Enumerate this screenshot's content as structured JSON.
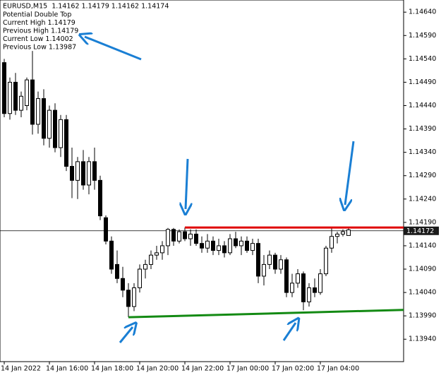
{
  "chart_data": {
    "type": "candlestick",
    "header": "EURUSD,M15  1.14162 1.14179 1.14162 1.14174",
    "annotations": [
      "Potential Double Top",
      "Current High 1.14179",
      "Previous High 1.14179",
      "Current Low 1.14002",
      "Previous Low 1.13987"
    ],
    "categories": [
      "14 Jan 2022",
      null,
      null,
      null,
      null,
      null,
      null,
      null,
      "14 Jan 16:00",
      null,
      null,
      null,
      null,
      null,
      null,
      null,
      "14 Jan 18:00",
      null,
      null,
      null,
      null,
      null,
      null,
      null,
      "14 Jan 20:00",
      null,
      null,
      null,
      null,
      null,
      null,
      null,
      "14 Jan 22:00",
      null,
      null,
      null,
      null,
      null,
      null,
      null,
      "17 Jan 00:00",
      null,
      null,
      null,
      null,
      null,
      null,
      null,
      "17 Jan 02:00",
      null,
      null,
      null,
      null,
      null,
      null,
      null,
      "17 Jan 04:00",
      null,
      null,
      null,
      null,
      null
    ],
    "open": [
      1.14532,
      1.14423,
      1.1449,
      1.1443,
      1.1444,
      1.14495,
      1.144,
      1.14455,
      1.1437,
      1.1443,
      1.1435,
      1.1441,
      1.1431,
      1.1428,
      1.1432,
      1.1427,
      1.1432,
      1.1428,
      1.142,
      1.1415,
      1.141,
      1.1407,
      1.14045,
      1.1401,
      1.1405,
      1.1409,
      1.141,
      1.1412,
      1.14125,
      1.1414,
      1.14175,
      1.1415,
      1.1417,
      1.14155,
      1.14165,
      1.14145,
      1.14135,
      1.1415,
      1.1413,
      1.1414,
      1.14125,
      1.14155,
      1.1414,
      1.1415,
      1.1413,
      1.14145,
      1.14075,
      1.141,
      1.1412,
      1.1409,
      1.1411,
      1.1404,
      1.1406,
      1.1408,
      1.1402,
      1.1405,
      1.1404,
      1.1408,
      1.14135,
      1.1416,
      1.14165,
      1.14162
    ],
    "high": [
      1.1454,
      1.145,
      1.1451,
      1.1447,
      1.145,
      1.14557,
      1.1447,
      1.14475,
      1.1444,
      1.14445,
      1.1442,
      1.1442,
      1.1435,
      1.1433,
      1.14345,
      1.1433,
      1.1435,
      1.1429,
      1.14205,
      1.1416,
      1.1413,
      1.14095,
      1.1406,
      1.1406,
      1.141,
      1.1411,
      1.1413,
      1.1414,
      1.1415,
      1.14178,
      1.14178,
      1.14175,
      1.14179,
      1.14175,
      1.14175,
      1.1416,
      1.14165,
      1.1416,
      1.14155,
      1.1415,
      1.14165,
      1.1417,
      1.1416,
      1.1416,
      1.14155,
      1.14155,
      1.1412,
      1.1413,
      1.14125,
      1.1412,
      1.14115,
      1.1408,
      1.1409,
      1.14085,
      1.1406,
      1.1407,
      1.1409,
      1.1414,
      1.14179,
      1.1417,
      1.14175,
      1.14179
    ],
    "low": [
      1.14415,
      1.1441,
      1.1442,
      1.14415,
      1.1443,
      1.14378,
      1.1438,
      1.14355,
      1.1435,
      1.1434,
      1.1433,
      1.143,
      1.14242,
      1.1424,
      1.1426,
      1.1425,
      1.1426,
      1.14195,
      1.14143,
      1.1408,
      1.1406,
      1.1403,
      1.13987,
      1.14,
      1.1404,
      1.1407,
      1.1409,
      1.1411,
      1.1411,
      1.1412,
      1.1414,
      1.14145,
      1.1415,
      1.1414,
      1.1414,
      1.14125,
      1.14125,
      1.1412,
      1.1412,
      1.14115,
      1.1412,
      1.14135,
      1.1412,
      1.14125,
      1.1412,
      1.1406,
      1.14055,
      1.1409,
      1.1408,
      1.1408,
      1.1403,
      1.1403,
      1.1405,
      1.14002,
      1.1401,
      1.1403,
      1.14035,
      1.14075,
      1.14125,
      1.14145,
      1.1416,
      1.14162
    ],
    "close": [
      1.14423,
      1.1449,
      1.1443,
      1.1446,
      1.14495,
      1.144,
      1.14455,
      1.1437,
      1.1443,
      1.1435,
      1.1441,
      1.1431,
      1.1428,
      1.1432,
      1.1427,
      1.1432,
      1.1428,
      1.14204,
      1.1415,
      1.1409,
      1.1407,
      1.14045,
      1.1401,
      1.1405,
      1.1409,
      1.141,
      1.1412,
      1.14125,
      1.1414,
      1.14175,
      1.1415,
      1.1417,
      1.14155,
      1.14165,
      1.14145,
      1.14135,
      1.1415,
      1.1413,
      1.1414,
      1.14125,
      1.14155,
      1.1414,
      1.1415,
      1.1413,
      1.14145,
      1.14075,
      1.141,
      1.1412,
      1.1409,
      1.1411,
      1.1404,
      1.1406,
      1.1408,
      1.1402,
      1.1405,
      1.1404,
      1.1408,
      1.14135,
      1.1416,
      1.14165,
      1.1417,
      1.14174
    ],
    "up_color": "#ffffff",
    "down_color": "#000000",
    "ylim": [
      1.13892,
      1.14666
    ],
    "yticks": [
      {
        "value": 1.1464,
        "label": "1.14640"
      },
      {
        "value": 1.1459,
        "label": "1.14590"
      },
      {
        "value": 1.1454,
        "label": "1.14540"
      },
      {
        "value": 1.1449,
        "label": "1.14490"
      },
      {
        "value": 1.1444,
        "label": "1.14440"
      },
      {
        "value": 1.1439,
        "label": "1.14390"
      },
      {
        "value": 1.1434,
        "label": "1.14340"
      },
      {
        "value": 1.1429,
        "label": "1.14290"
      },
      {
        "value": 1.1424,
        "label": "1.14240"
      },
      {
        "value": 1.1419,
        "label": "1.14190"
      },
      {
        "value": 1.1414,
        "label": "1.14140"
      },
      {
        "value": 1.1409,
        "label": "1.14090"
      },
      {
        "value": 1.1404,
        "label": "1.14040"
      },
      {
        "value": 1.1399,
        "label": "1.13990"
      },
      {
        "value": 1.1394,
        "label": "1.13940"
      }
    ],
    "last_price": 1.14172,
    "lines": [
      {
        "color": "#e00000",
        "from": [
          32,
          1.14179
        ],
        "to": [
          58,
          1.14179
        ]
      },
      {
        "color": "#138a13",
        "from": [
          22,
          1.13987
        ],
        "to": [
          53,
          1.13997
        ]
      }
    ]
  }
}
